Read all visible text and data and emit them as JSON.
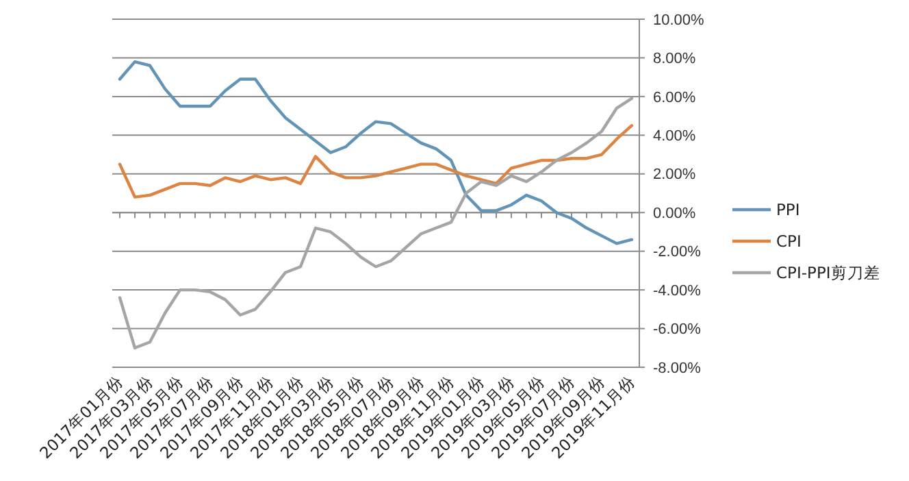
{
  "chart_data": {
    "type": "line",
    "categories": [
      "2017年01月份",
      null,
      "2017年03月份",
      null,
      "2017年05月份",
      null,
      "2017年07月份",
      null,
      "2017年09月份",
      null,
      "2017年11月份",
      null,
      "2018年01月份",
      null,
      "2018年03月份",
      null,
      "2018年05月份",
      null,
      "2018年07月份",
      null,
      "2018年09月份",
      null,
      "2018年11月份",
      null,
      "2019年01月份",
      null,
      "2019年03月份",
      null,
      "2019年05月份",
      null,
      "2019年07月份",
      null,
      "2019年09月份",
      null,
      "2019年11月份"
    ],
    "series": [
      {
        "name": "PPI",
        "color": "#6194b6",
        "values": [
          6.9,
          7.8,
          7.6,
          6.4,
          5.5,
          5.5,
          5.5,
          6.3,
          6.9,
          6.9,
          5.8,
          4.9,
          4.3,
          3.7,
          3.1,
          3.4,
          4.1,
          4.7,
          4.6,
          4.1,
          3.6,
          3.3,
          2.7,
          0.9,
          0.1,
          0.1,
          0.4,
          0.9,
          0.6,
          0.0,
          -0.3,
          -0.8,
          -1.2,
          -1.6,
          -1.4
        ]
      },
      {
        "name": "CPI",
        "color": "#dc8443",
        "values": [
          2.5,
          0.8,
          0.9,
          1.2,
          1.5,
          1.5,
          1.4,
          1.8,
          1.6,
          1.9,
          1.7,
          1.8,
          1.5,
          2.9,
          2.1,
          1.8,
          1.8,
          1.9,
          2.1,
          2.3,
          2.5,
          2.5,
          2.2,
          1.9,
          1.7,
          1.5,
          2.3,
          2.5,
          2.7,
          2.7,
          2.8,
          2.8,
          3.0,
          3.8,
          4.5
        ]
      },
      {
        "name": "CPI-PPI剪刀差",
        "color": "#a5a5a5",
        "values": [
          -4.4,
          -7.0,
          -6.7,
          -5.2,
          -4.0,
          -4.0,
          -4.1,
          -4.5,
          -5.3,
          -5.0,
          -4.1,
          -3.1,
          -2.8,
          -0.8,
          -1.0,
          -1.6,
          -2.3,
          -2.8,
          -2.5,
          -1.8,
          -1.1,
          -0.8,
          -0.5,
          1.0,
          1.6,
          1.4,
          1.9,
          1.6,
          2.1,
          2.7,
          3.1,
          3.6,
          4.2,
          5.4,
          5.9
        ]
      }
    ],
    "ylim": [
      -8,
      10
    ],
    "yticks": [
      {
        "value": -8,
        "label": "-8.00%"
      },
      {
        "value": -6,
        "label": "-6.00%"
      },
      {
        "value": -4,
        "label": "-4.00%"
      },
      {
        "value": -2,
        "label": "-2.00%"
      },
      {
        "value": 0,
        "label": "0.00%"
      },
      {
        "value": 2,
        "label": "2.00%"
      },
      {
        "value": 4,
        "label": "4.00%"
      },
      {
        "value": 6,
        "label": "6.00%"
      },
      {
        "value": 8,
        "label": "8.00%"
      },
      {
        "value": 10,
        "label": "10.00%"
      }
    ],
    "grid": "y",
    "legend": "right",
    "marker": "none",
    "line_style": "solid"
  }
}
